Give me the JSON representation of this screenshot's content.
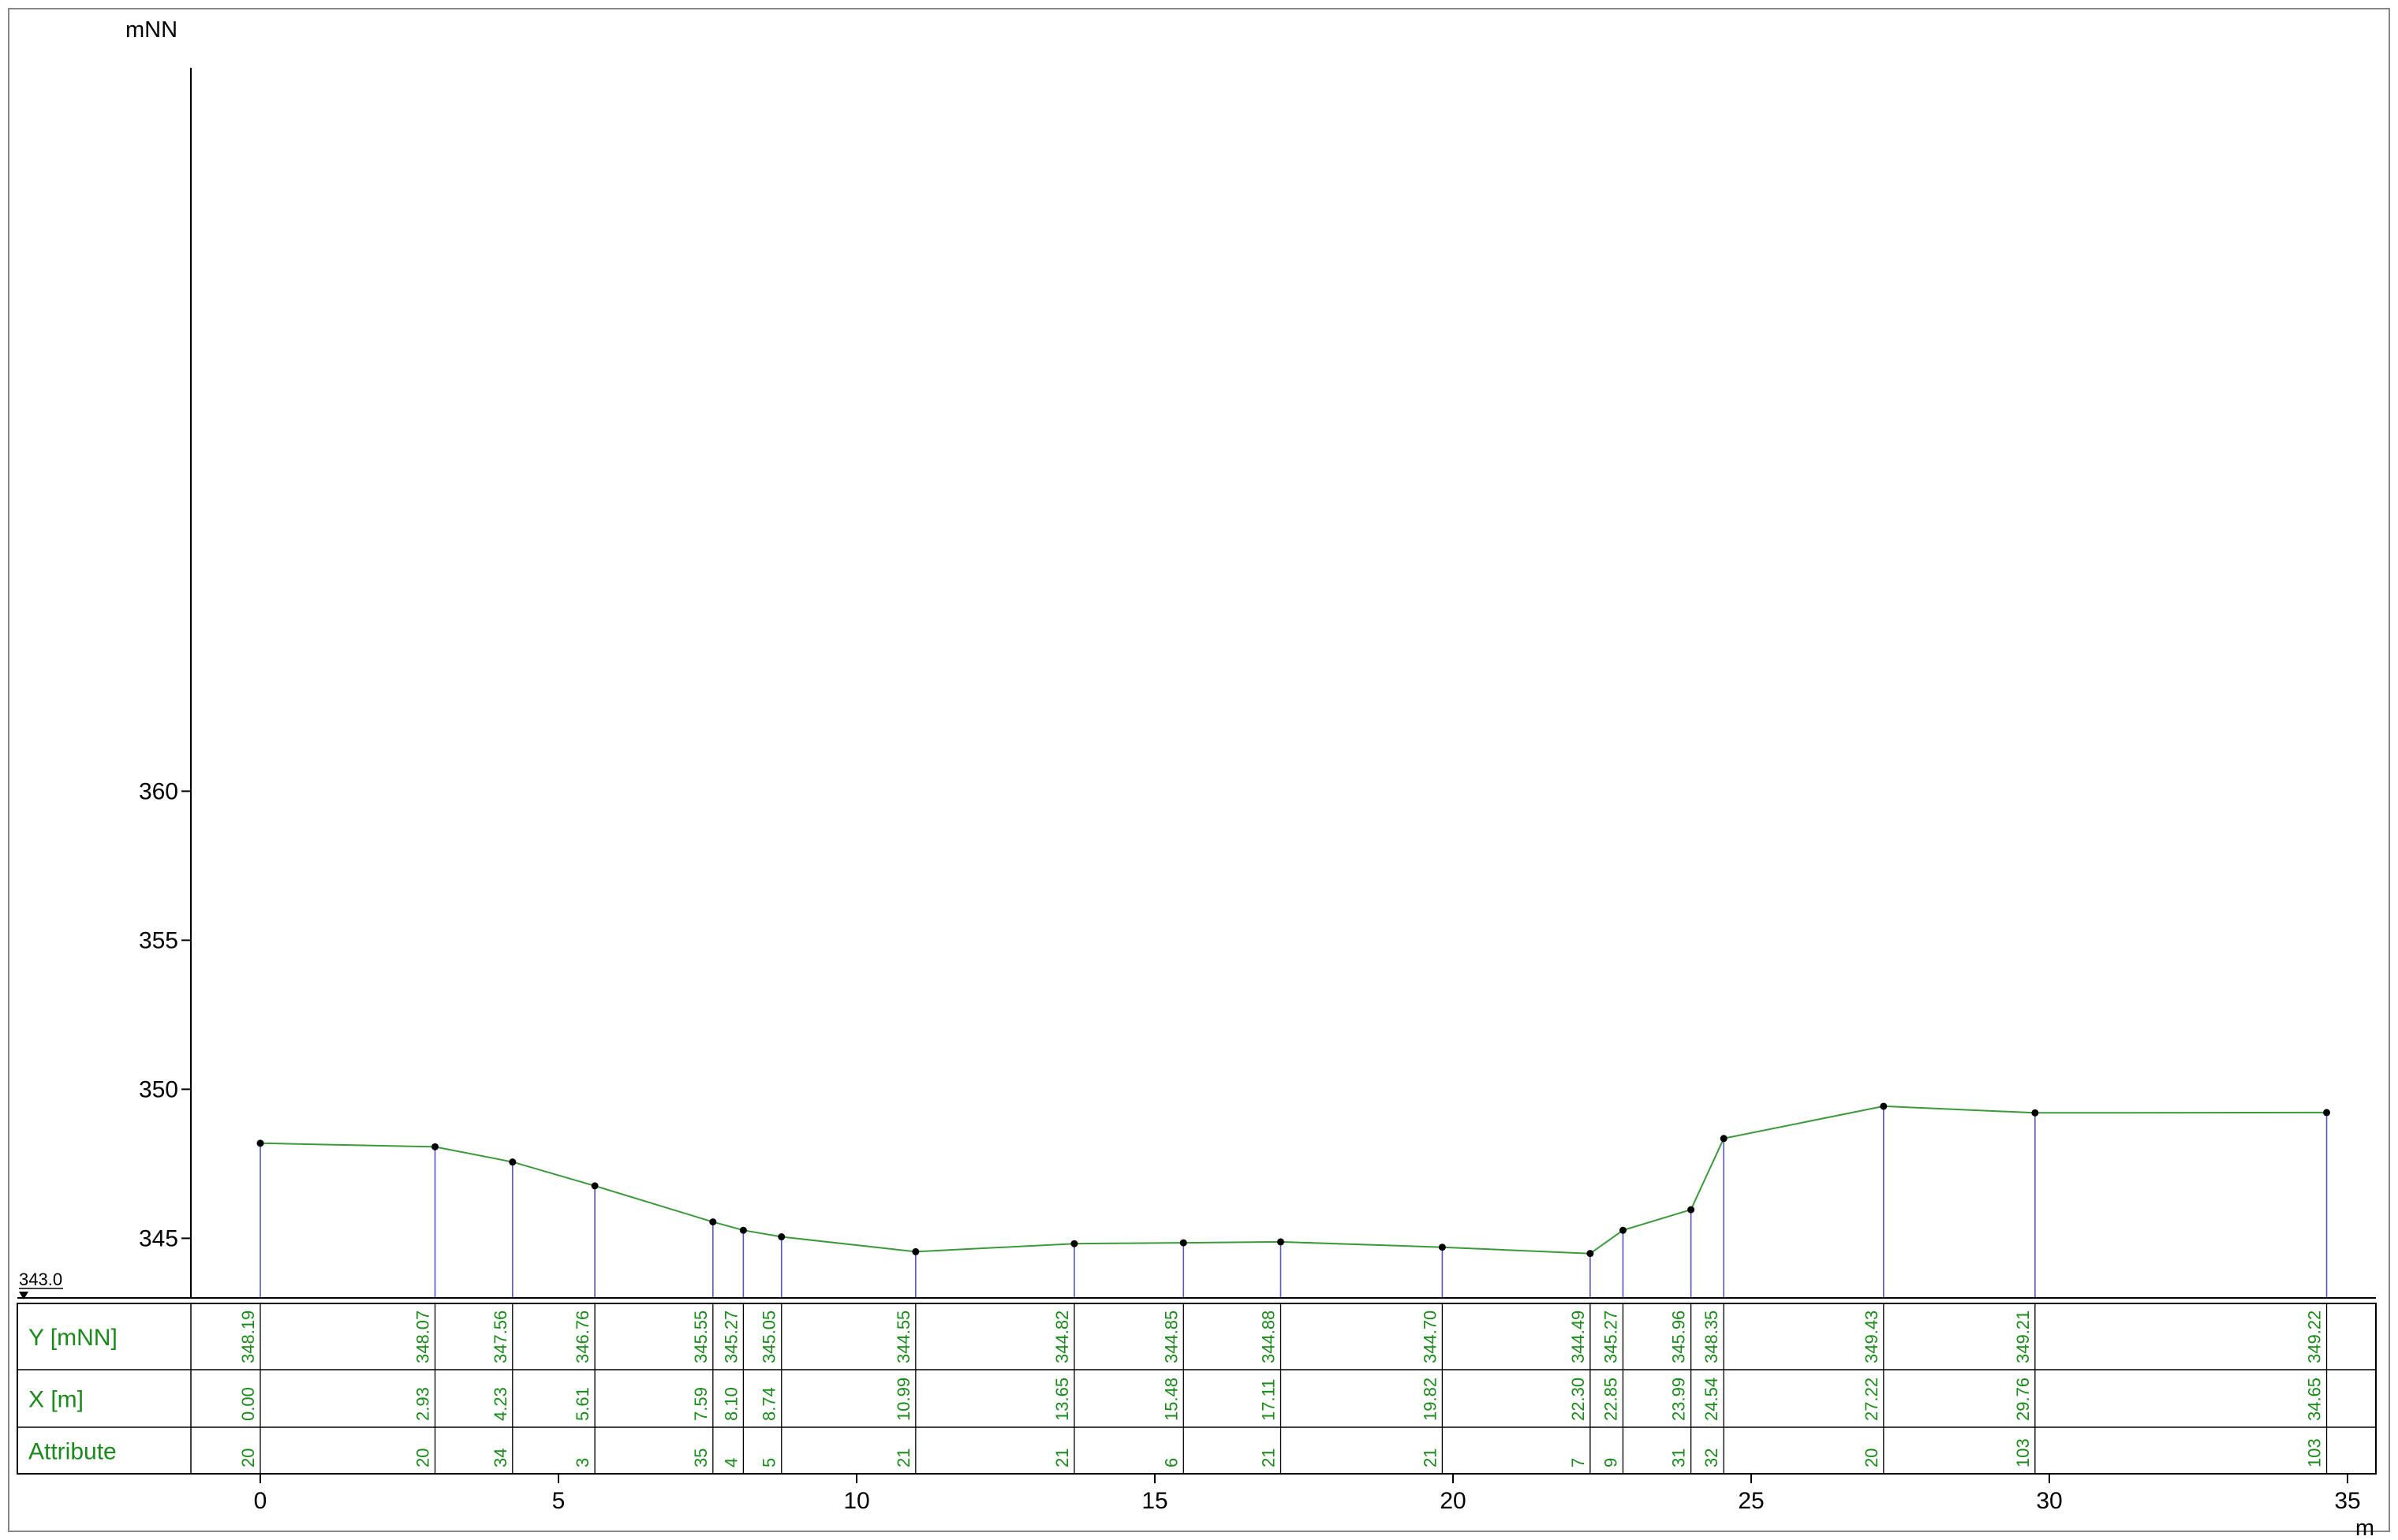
{
  "chart_data": {
    "type": "line",
    "title": "",
    "y_unit_label": "mNN",
    "x_unit_label": "m",
    "datum_label": "343.0",
    "xlim": [
      -1.2,
      35.7
    ],
    "ylim": [
      343.0,
      363.6
    ],
    "x_ticks": [
      "0",
      "5",
      "10",
      "15",
      "20",
      "25",
      "30",
      "35"
    ],
    "y_ticks": [
      "345",
      "350",
      "355",
      "360"
    ],
    "colors": {
      "profile_line": "#3a9a3a",
      "point": "#000000",
      "drop_line": "#5555cc",
      "table_text": "#1a8a1a",
      "axis": "#000000"
    },
    "table": {
      "row_labels": [
        "Y [mNN]",
        "X [m]",
        "Attribute"
      ]
    },
    "points": [
      {
        "x": 0.0,
        "y": 348.19,
        "x_label": "0.00",
        "y_label": "348.19",
        "attribute": "20"
      },
      {
        "x": 2.93,
        "y": 348.07,
        "x_label": "2.93",
        "y_label": "348.07",
        "attribute": "20"
      },
      {
        "x": 4.23,
        "y": 347.56,
        "x_label": "4.23",
        "y_label": "347.56",
        "attribute": "34"
      },
      {
        "x": 5.61,
        "y": 346.76,
        "x_label": "5.61",
        "y_label": "346.76",
        "attribute": "3"
      },
      {
        "x": 7.59,
        "y": 345.55,
        "x_label": "7.59",
        "y_label": "345.55",
        "attribute": "35"
      },
      {
        "x": 8.1,
        "y": 345.27,
        "x_label": "8.10",
        "y_label": "345.27",
        "attribute": "4"
      },
      {
        "x": 8.74,
        "y": 345.05,
        "x_label": "8.74",
        "y_label": "345.05",
        "attribute": "5"
      },
      {
        "x": 10.99,
        "y": 344.55,
        "x_label": "10.99",
        "y_label": "344.55",
        "attribute": "21"
      },
      {
        "x": 13.65,
        "y": 344.82,
        "x_label": "13.65",
        "y_label": "344.82",
        "attribute": "21"
      },
      {
        "x": 15.48,
        "y": 344.85,
        "x_label": "15.48",
        "y_label": "344.85",
        "attribute": "6"
      },
      {
        "x": 17.11,
        "y": 344.88,
        "x_label": "17.11",
        "y_label": "344.88",
        "attribute": "21"
      },
      {
        "x": 19.82,
        "y": 344.7,
        "x_label": "19.82",
        "y_label": "344.70",
        "attribute": "21"
      },
      {
        "x": 22.3,
        "y": 344.49,
        "x_label": "22.30",
        "y_label": "344.49",
        "attribute": "7"
      },
      {
        "x": 22.85,
        "y": 345.27,
        "x_label": "22.85",
        "y_label": "345.27",
        "attribute": "9"
      },
      {
        "x": 23.99,
        "y": 345.96,
        "x_label": "23.99",
        "y_label": "345.96",
        "attribute": "31"
      },
      {
        "x": 24.54,
        "y": 348.35,
        "x_label": "24.54",
        "y_label": "348.35",
        "attribute": "32"
      },
      {
        "x": 27.22,
        "y": 349.43,
        "x_label": "27.22",
        "y_label": "349.43",
        "attribute": "20"
      },
      {
        "x": 29.76,
        "y": 349.21,
        "x_label": "29.76",
        "y_label": "349.21",
        "attribute": "103"
      },
      {
        "x": 34.65,
        "y": 349.22,
        "x_label": "34.65",
        "y_label": "349.22",
        "attribute": "103"
      }
    ]
  }
}
